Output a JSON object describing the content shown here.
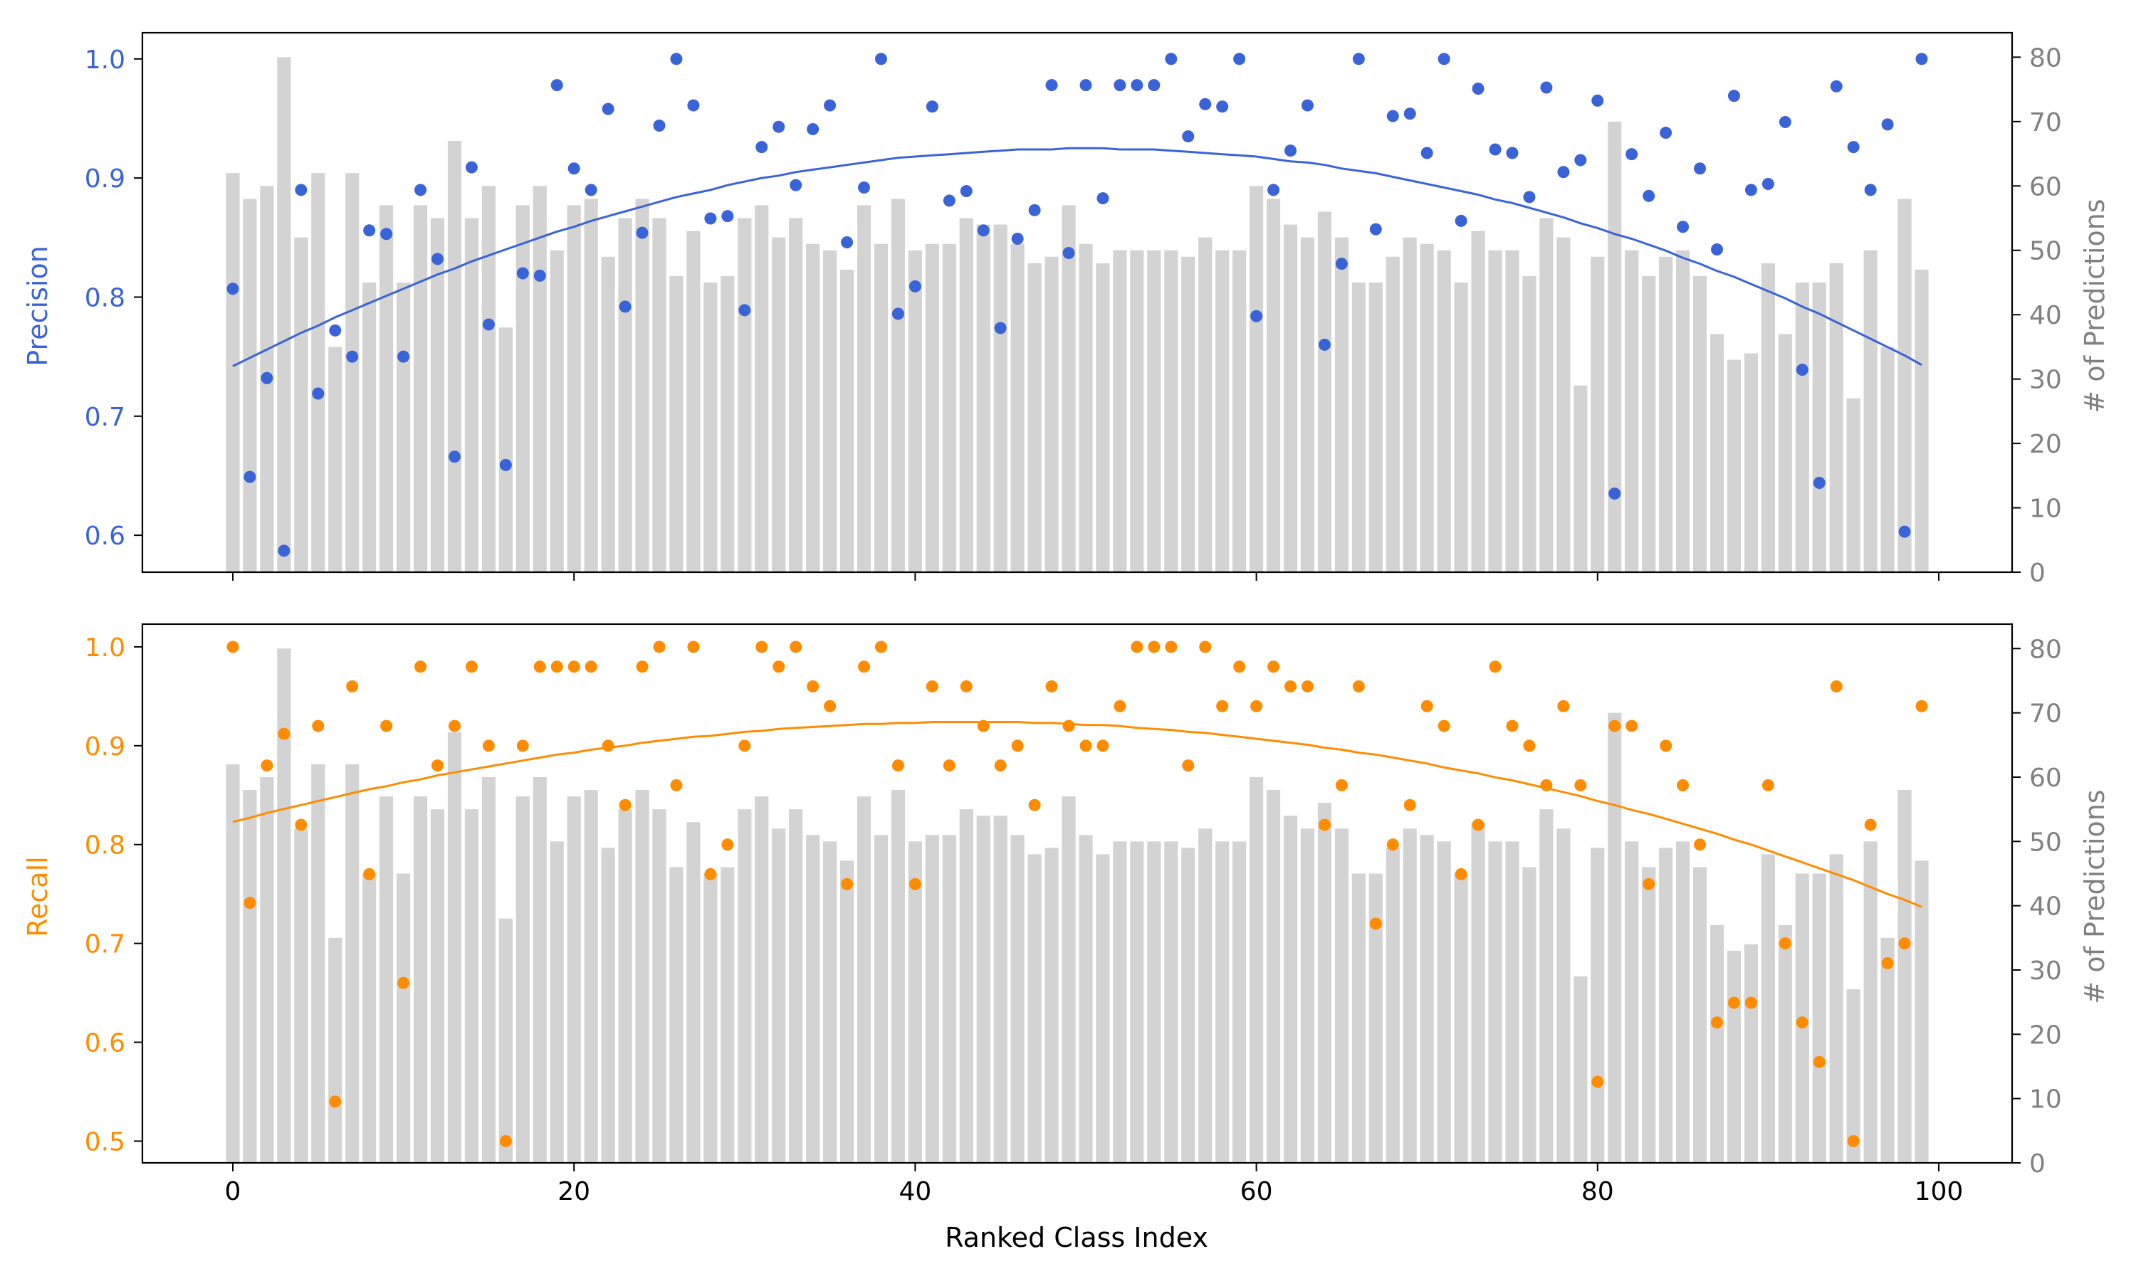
{
  "colors": {
    "precision": "#3a63d8",
    "recall": "#ff8c00",
    "bars": "#d3d3d3",
    "right_axis_text": "#808080"
  },
  "chart_data": [
    {
      "type": "scatter",
      "overlays": [
        "bar",
        "line"
      ],
      "title": "",
      "xlabel": "",
      "ylabel": "Precision",
      "ylabel_right": "# of Predictions",
      "xlim": [
        -5.3,
        104.3
      ],
      "ylim": [
        0.569,
        1.022
      ],
      "ylim_right": [
        0,
        83.8
      ],
      "xticks": [
        0,
        20,
        40,
        60,
        80,
        100
      ],
      "yticks": [
        0.6,
        0.7,
        0.8,
        0.9,
        1.0
      ],
      "yticks_right": [
        0,
        10,
        20,
        30,
        40,
        50,
        60,
        70,
        80
      ],
      "x": [
        0,
        1,
        2,
        3,
        4,
        5,
        6,
        7,
        8,
        9,
        10,
        11,
        12,
        13,
        14,
        15,
        16,
        17,
        18,
        19,
        20,
        21,
        22,
        23,
        24,
        25,
        26,
        27,
        28,
        29,
        30,
        31,
        32,
        33,
        34,
        35,
        36,
        37,
        38,
        39,
        40,
        41,
        42,
        43,
        44,
        45,
        46,
        47,
        48,
        49,
        50,
        51,
        52,
        53,
        54,
        55,
        56,
        57,
        58,
        59,
        60,
        61,
        62,
        63,
        64,
        65,
        66,
        67,
        68,
        69,
        70,
        71,
        72,
        73,
        74,
        75,
        76,
        77,
        78,
        79,
        80,
        81,
        82,
        83,
        84,
        85,
        86,
        87,
        88,
        89,
        90,
        91,
        92,
        93,
        94,
        95,
        96,
        97,
        98,
        99
      ],
      "bars": [
        62,
        58,
        60,
        80,
        52,
        62,
        35,
        62,
        45,
        57,
        45,
        57,
        55,
        67,
        55,
        60,
        38,
        57,
        60,
        50,
        57,
        58,
        49,
        55,
        58,
        55,
        46,
        53,
        45,
        46,
        55,
        57,
        52,
        55,
        51,
        50,
        47,
        57,
        51,
        58,
        50,
        51,
        51,
        55,
        54,
        54,
        51,
        48,
        49,
        57,
        51,
        48,
        50,
        50,
        50,
        50,
        49,
        52,
        50,
        50,
        60,
        58,
        54,
        52,
        56,
        52,
        45,
        45,
        49,
        52,
        51,
        50,
        45,
        53,
        50,
        50,
        46,
        55,
        52,
        29,
        49,
        70,
        50,
        46,
        49,
        50,
        46,
        37,
        33,
        34,
        48,
        37,
        45,
        45,
        48,
        27,
        50,
        35,
        58,
        47
      ],
      "values": [
        0.807,
        0.649,
        0.732,
        0.587,
        0.89,
        0.719,
        0.772,
        0.75,
        0.856,
        0.853,
        0.75,
        0.89,
        0.832,
        0.666,
        0.909,
        0.777,
        0.659,
        0.82,
        0.818,
        0.978,
        0.908,
        0.89,
        0.958,
        0.792,
        0.854,
        0.944,
        1.0,
        0.961,
        0.866,
        0.868,
        0.789,
        0.926,
        0.943,
        0.894,
        0.941,
        0.961,
        0.846,
        0.892,
        1.0,
        0.786,
        0.809,
        0.96,
        0.881,
        0.889,
        0.856,
        0.774,
        0.849,
        0.873,
        0.978,
        0.837,
        0.978,
        0.883,
        0.978,
        0.978,
        0.978,
        1.0,
        0.935,
        0.962,
        0.96,
        1.0,
        0.784,
        0.89,
        0.923,
        0.961,
        0.76,
        0.828,
        1.0,
        0.857,
        0.952,
        0.954,
        0.921,
        1.0,
        0.864,
        0.975,
        0.924,
        0.921,
        0.884,
        0.976,
        0.905,
        0.915,
        0.965,
        0.635,
        0.92,
        0.885,
        0.938,
        0.859,
        0.908,
        0.84,
        0.969,
        0.89,
        0.895,
        0.947,
        0.739,
        0.644,
        0.977,
        0.926,
        0.89,
        0.945,
        0.603,
        1.0
      ],
      "trend": [
        0.742,
        0.749,
        0.756,
        0.763,
        0.77,
        0.776,
        0.783,
        0.789,
        0.795,
        0.801,
        0.807,
        0.813,
        0.819,
        0.824,
        0.83,
        0.835,
        0.84,
        0.845,
        0.85,
        0.855,
        0.859,
        0.864,
        0.868,
        0.872,
        0.876,
        0.88,
        0.884,
        0.887,
        0.89,
        0.894,
        0.897,
        0.9,
        0.902,
        0.905,
        0.907,
        0.909,
        0.911,
        0.913,
        0.915,
        0.917,
        0.918,
        0.919,
        0.92,
        0.921,
        0.922,
        0.923,
        0.924,
        0.924,
        0.924,
        0.925,
        0.925,
        0.925,
        0.924,
        0.924,
        0.924,
        0.923,
        0.922,
        0.921,
        0.92,
        0.919,
        0.918,
        0.916,
        0.914,
        0.913,
        0.911,
        0.908,
        0.906,
        0.904,
        0.901,
        0.898,
        0.895,
        0.892,
        0.889,
        0.886,
        0.882,
        0.879,
        0.875,
        0.871,
        0.867,
        0.862,
        0.858,
        0.853,
        0.849,
        0.844,
        0.839,
        0.833,
        0.828,
        0.822,
        0.817,
        0.811,
        0.805,
        0.799,
        0.792,
        0.786,
        0.779,
        0.772,
        0.765,
        0.758,
        0.751,
        0.743
      ]
    },
    {
      "type": "scatter",
      "overlays": [
        "bar",
        "line"
      ],
      "title": "",
      "xlabel": "Ranked Class Index",
      "ylabel": "Recall",
      "ylabel_right": "# of Predictions",
      "xlim": [
        -5.3,
        104.3
      ],
      "ylim": [
        0.478,
        1.023
      ],
      "ylim_right": [
        0,
        83.8
      ],
      "xticks": [
        0,
        20,
        40,
        60,
        80,
        100
      ],
      "yticks": [
        0.5,
        0.6,
        0.7,
        0.8,
        0.9,
        1.0
      ],
      "yticks_right": [
        0,
        10,
        20,
        30,
        40,
        50,
        60,
        70,
        80
      ],
      "x": [
        0,
        1,
        2,
        3,
        4,
        5,
        6,
        7,
        8,
        9,
        10,
        11,
        12,
        13,
        14,
        15,
        16,
        17,
        18,
        19,
        20,
        21,
        22,
        23,
        24,
        25,
        26,
        27,
        28,
        29,
        30,
        31,
        32,
        33,
        34,
        35,
        36,
        37,
        38,
        39,
        40,
        41,
        42,
        43,
        44,
        45,
        46,
        47,
        48,
        49,
        50,
        51,
        52,
        53,
        54,
        55,
        56,
        57,
        58,
        59,
        60,
        61,
        62,
        63,
        64,
        65,
        66,
        67,
        68,
        69,
        70,
        71,
        72,
        73,
        74,
        75,
        76,
        77,
        78,
        79,
        80,
        81,
        82,
        83,
        84,
        85,
        86,
        87,
        88,
        89,
        90,
        91,
        92,
        93,
        94,
        95,
        96,
        97,
        98,
        99
      ],
      "bars": [
        62,
        58,
        60,
        80,
        52,
        62,
        35,
        62,
        45,
        57,
        45,
        57,
        55,
        67,
        55,
        60,
        38,
        57,
        60,
        50,
        57,
        58,
        49,
        55,
        58,
        55,
        46,
        53,
        45,
        46,
        55,
        57,
        52,
        55,
        51,
        50,
        47,
        57,
        51,
        58,
        50,
        51,
        51,
        55,
        54,
        54,
        51,
        48,
        49,
        57,
        51,
        48,
        50,
        50,
        50,
        50,
        49,
        52,
        50,
        50,
        60,
        58,
        54,
        52,
        56,
        52,
        45,
        45,
        49,
        52,
        51,
        50,
        45,
        53,
        50,
        50,
        46,
        55,
        52,
        29,
        49,
        70,
        50,
        46,
        49,
        50,
        46,
        37,
        33,
        34,
        48,
        37,
        45,
        45,
        48,
        27,
        50,
        35,
        58,
        47
      ],
      "values": [
        1.0,
        0.741,
        0.88,
        0.912,
        0.82,
        0.92,
        0.54,
        0.96,
        0.77,
        0.92,
        0.66,
        0.98,
        0.88,
        0.92,
        0.98,
        0.9,
        0.5,
        0.9,
        0.98,
        0.98,
        0.98,
        0.98,
        0.9,
        0.84,
        0.98,
        1.0,
        0.86,
        1.0,
        0.77,
        0.8,
        0.9,
        1.0,
        0.98,
        1.0,
        0.96,
        0.94,
        0.76,
        0.98,
        1.0,
        0.88,
        0.76,
        0.96,
        0.88,
        0.96,
        0.92,
        0.88,
        0.9,
        0.84,
        0.96,
        0.92,
        0.9,
        0.9,
        0.94,
        1.0,
        1.0,
        1.0,
        0.88,
        1.0,
        0.94,
        0.98,
        0.94,
        0.98,
        0.96,
        0.96,
        0.82,
        0.86,
        0.96,
        0.72,
        0.8,
        0.84,
        0.94,
        0.92,
        0.77,
        0.82,
        0.98,
        0.92,
        0.9,
        0.86,
        0.94,
        0.86,
        0.56,
        0.92,
        0.92,
        0.76,
        0.9,
        0.86,
        0.8,
        0.62,
        0.64,
        0.64,
        0.86,
        0.7,
        0.62,
        0.58,
        0.96,
        0.5,
        0.82,
        0.68,
        0.7,
        0.94
      ],
      "trend": [
        0.823,
        0.827,
        0.832,
        0.836,
        0.84,
        0.844,
        0.848,
        0.852,
        0.856,
        0.859,
        0.863,
        0.866,
        0.87,
        0.873,
        0.876,
        0.879,
        0.882,
        0.885,
        0.888,
        0.891,
        0.893,
        0.896,
        0.898,
        0.9,
        0.903,
        0.905,
        0.907,
        0.909,
        0.91,
        0.912,
        0.914,
        0.915,
        0.917,
        0.918,
        0.919,
        0.92,
        0.921,
        0.922,
        0.922,
        0.923,
        0.923,
        0.924,
        0.924,
        0.924,
        0.924,
        0.924,
        0.924,
        0.923,
        0.923,
        0.922,
        0.921,
        0.921,
        0.92,
        0.918,
        0.917,
        0.916,
        0.914,
        0.913,
        0.911,
        0.909,
        0.907,
        0.905,
        0.903,
        0.901,
        0.898,
        0.896,
        0.893,
        0.891,
        0.888,
        0.885,
        0.882,
        0.878,
        0.875,
        0.872,
        0.868,
        0.865,
        0.861,
        0.857,
        0.853,
        0.849,
        0.844,
        0.84,
        0.835,
        0.831,
        0.826,
        0.821,
        0.816,
        0.811,
        0.805,
        0.8,
        0.794,
        0.788,
        0.782,
        0.776,
        0.77,
        0.764,
        0.757,
        0.75,
        0.744,
        0.737
      ]
    }
  ]
}
